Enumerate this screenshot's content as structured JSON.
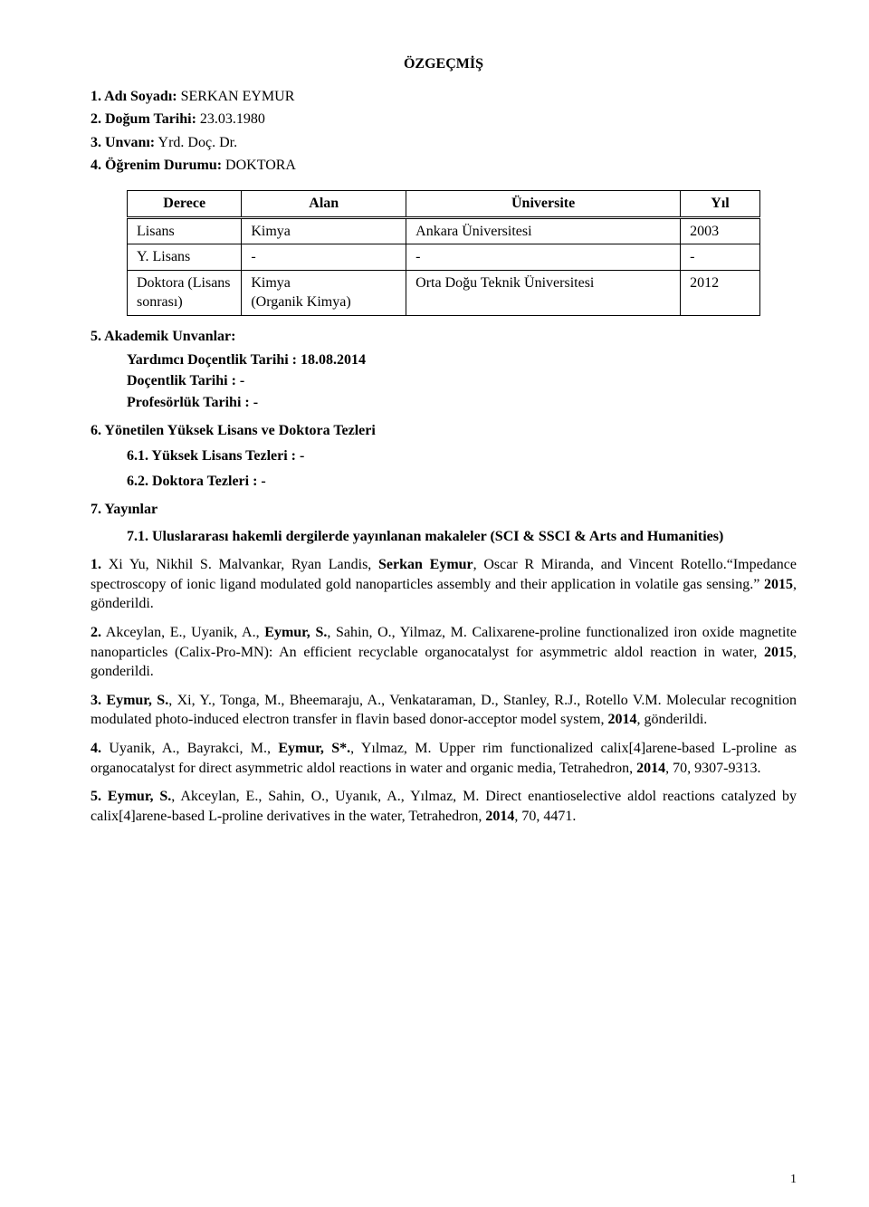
{
  "title": "ÖZGEÇMİŞ",
  "fields": {
    "f1_label": "1.    Adı Soyadı:",
    "f1_value": " SERKAN EYMUR",
    "f2_label": "2.    Doğum Tarihi:",
    "f2_value": " 23.03.1980",
    "f3_label": "3.    Unvanı:",
    "f3_value": " Yrd. Doç. Dr.",
    "f4_label": "4.    Öğrenim Durumu:",
    "f4_value": " DOKTORA"
  },
  "edu_table": {
    "headers": [
      "Derece",
      "Alan",
      "Üniversite",
      "Yıl"
    ],
    "rows": [
      [
        "Lisans",
        "Kimya",
        "Ankara Üniversitesi",
        "2003"
      ],
      [
        "Y. Lisans",
        "-",
        "-",
        "-"
      ],
      [
        "Doktora (Lisans sonrası)",
        "Kimya\n(Organik Kimya)",
        "Orta Doğu Teknik Üniversitesi",
        "2012"
      ]
    ]
  },
  "s5_head": "5.    Akademik Unvanlar:",
  "s5_lines": [
    "Yardımcı Doçentlik Tarihi :  18.08.2014",
    "Doçentlik Tarihi               :   -",
    "Profesörlük Tarihi            :   -"
  ],
  "s6_head": "6.    Yönetilen Yüksek Lisans ve Doktora Tezleri",
  "s6_1": "6.1.  Yüksek Lisans Tezleri : -",
  "s6_2": "6.2.  Doktora Tezleri       :  -",
  "s7_head": "7.    Yayınlar",
  "s7_1_head": "7.1.  Uluslararası hakemli dergilerde yayınlanan makaleler (SCI & SSCI & Arts and Humanities)",
  "pubs": {
    "p1_num": "1.",
    "p1_a": " Xi Yu, Nikhil S. Malvankar, Ryan Landis, ",
    "p1_b": "Serkan Eymur",
    "p1_c": ", Oscar R Miranda, and Vincent Rotello.“Impedance spectroscopy of ionic ligand modulated gold nanoparticles assembly and their application in volatile gas sensing.” ",
    "p1_d": "2015",
    "p1_e": ", gönderildi.",
    "p2_num": "2.",
    "p2_a": " Akceylan, E., Uyanik, A., ",
    "p2_b": "Eymur, S.",
    "p2_c": ", Sahin, O., Yilmaz, M. Calixarene-proline functionalized iron oxide magnetite nanoparticles (Calix-Pro-MN): An efficient recyclable organocatalyst for asymmetric aldol reaction in water, ",
    "p2_d": "2015",
    "p2_e": ", gonderildi.",
    "p3_num": "3.",
    "p3_a": " ",
    "p3_b": "Eymur, S.",
    "p3_c": ", Xi, Y., Tonga, M., Bheemaraju, A., Venkataraman, D., Stanley, R.J., Rotello V.M. Molecular recognition modulated photo-induced electron transfer in flavin based donor-acceptor model system, ",
    "p3_d": "2014",
    "p3_e": ", gönderildi.",
    "p4_num": "4.",
    "p4_a": " Uyanik, A., Bayrakci, M., ",
    "p4_b": "Eymur, S*.",
    "p4_c": ", Yılmaz, M. Upper rim functionalized calix[4]arene-based L-proline as organocatalyst for direct asymmetric aldol reactions in water and organic media, Tetrahedron, ",
    "p4_d": "2014",
    "p4_e": ", 70, 9307-9313.",
    "p5_num": "5.",
    "p5_a": " ",
    "p5_b": "Eymur, S.",
    "p5_c": ", Akceylan, E., Sahin, O., Uyanık, A., Yılmaz, M. Direct enantioselective aldol reactions catalyzed by calix[4]arene-based L-proline derivatives in the water, Tetrahedron, ",
    "p5_d": "2014",
    "p5_e": ", 70, 4471."
  },
  "page_number": "1"
}
